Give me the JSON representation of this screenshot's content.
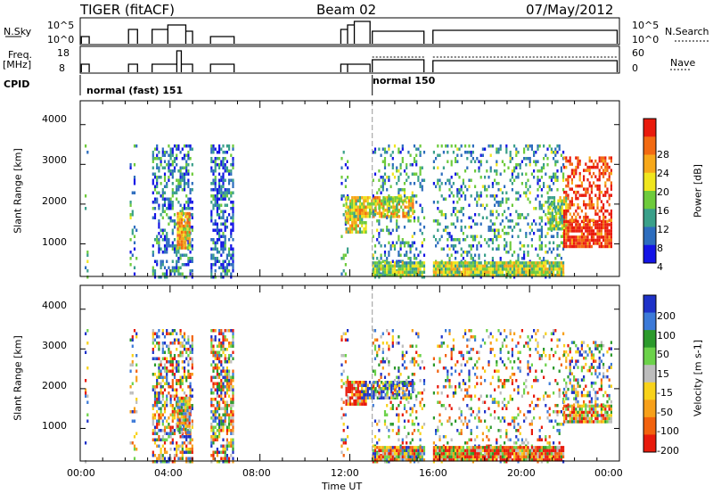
{
  "header": {
    "radar": "TIGER (fitACF)",
    "beam": "Beam 02",
    "date": "07/May/2012"
  },
  "summary_panels": {
    "nsky_label": "N.Sky",
    "nsky_ticks": [
      "10^5",
      "10^0"
    ],
    "nsearch_label": "N.Search",
    "nsearch_ticks": [
      "10^5",
      "10^0"
    ],
    "freq_label": "Freq.",
    "freq_unit": "[MHz]",
    "freq_ticks": [
      "18",
      "8"
    ],
    "nave_label": "Nave",
    "nave_ticks": [
      "60",
      "0"
    ],
    "cpid_label": "CPID",
    "cpid_modes": [
      {
        "name": "normal (fast) 151",
        "start_h": 0.0
      },
      {
        "name": "normal 150",
        "start_h": 13.0
      }
    ]
  },
  "axes": {
    "xlabel": "Time UT",
    "x_ticks": [
      "00:00",
      "04:00",
      "08:00",
      "12:00",
      "16:00",
      "20:00",
      "00:00"
    ],
    "ylabel": "Slant Range [km]",
    "y_ticks": [
      "1000",
      "2000",
      "3000",
      "4000"
    ]
  },
  "chart_data": [
    {
      "type": "heatmap",
      "title": "",
      "quantity": "Power",
      "colorbar_label": "Power [dB]",
      "colorbar_ticks": [
        "4",
        "8",
        "12",
        "16",
        "20",
        "24",
        "28"
      ],
      "colorbar_colors": [
        "#1414e6",
        "#2d6dbe",
        "#3aa08a",
        "#6ecb3c",
        "#f0e61e",
        "#f7a81a",
        "#f26a12",
        "#e91a0c"
      ],
      "xlabel": "Time UT",
      "ylabel": "Slant Range [km]",
      "xlim": [
        0,
        24
      ],
      "ylim": [
        180,
        4600
      ],
      "scatter_regions": [
        {
          "t0": 0.2,
          "t1": 0.35,
          "r0": 200,
          "r1": 3500,
          "density": 0.15,
          "level": 0.3
        },
        {
          "t0": 2.2,
          "t1": 2.5,
          "r0": 200,
          "r1": 3500,
          "density": 0.2,
          "level": 0.3
        },
        {
          "t0": 3.2,
          "t1": 5.0,
          "r0": 200,
          "r1": 3500,
          "density": 0.45,
          "level": 0.25
        },
        {
          "t0": 4.3,
          "t1": 4.9,
          "r0": 900,
          "r1": 1800,
          "density": 0.95,
          "level": 0.65
        },
        {
          "t0": 5.8,
          "t1": 6.8,
          "r0": 200,
          "r1": 3500,
          "density": 0.55,
          "level": 0.2
        },
        {
          "t0": 11.6,
          "t1": 11.9,
          "r0": 200,
          "r1": 3500,
          "density": 0.2,
          "level": 0.3
        },
        {
          "t0": 11.8,
          "t1": 12.7,
          "r0": 1300,
          "r1": 2200,
          "density": 0.8,
          "level": 0.55
        },
        {
          "t0": 12.5,
          "t1": 14.8,
          "r0": 1700,
          "r1": 2200,
          "density": 0.8,
          "level": 0.6
        },
        {
          "t0": 13.0,
          "t1": 15.3,
          "r0": 200,
          "r1": 3500,
          "density": 0.25,
          "level": 0.3
        },
        {
          "t0": 13.0,
          "t1": 15.3,
          "r0": 200,
          "r1": 560,
          "density": 0.95,
          "level": 0.45
        },
        {
          "t0": 15.7,
          "t1": 21.5,
          "r0": 200,
          "r1": 3500,
          "density": 0.25,
          "level": 0.3
        },
        {
          "t0": 15.7,
          "t1": 21.5,
          "r0": 200,
          "r1": 560,
          "density": 0.98,
          "level": 0.5
        },
        {
          "t0": 20.8,
          "t1": 21.6,
          "r0": 1400,
          "r1": 2200,
          "density": 0.8,
          "level": 0.45
        },
        {
          "t0": 21.5,
          "t1": 23.6,
          "r0": 900,
          "r1": 1600,
          "density": 0.9,
          "level": 0.95
        },
        {
          "t0": 21.5,
          "t1": 23.6,
          "r0": 1600,
          "r1": 3200,
          "density": 0.45,
          "level": 0.9
        }
      ]
    },
    {
      "type": "heatmap",
      "title": "",
      "quantity": "Velocity",
      "colorbar_label": "Velocity [m s-1]",
      "colorbar_ticks": [
        "200",
        "100",
        "50",
        "15",
        "-15",
        "-50",
        "-100",
        "-200"
      ],
      "colorbar_colors": [
        "#1e32c8",
        "#3c7ad8",
        "#2c9a2c",
        "#6cd24a",
        "#bdbdbd",
        "#f8d21a",
        "#f7a01a",
        "#f2620e",
        "#e81a0c"
      ],
      "xlabel": "Time UT",
      "ylabel": "Slant Range [km]",
      "xlim": [
        0,
        24
      ],
      "ylim": [
        180,
        4600
      ],
      "scatter_regions": [
        {
          "t0": 0.2,
          "t1": 0.35,
          "r0": 200,
          "r1": 3500,
          "density": 0.15,
          "level": 0.5
        },
        {
          "t0": 2.2,
          "t1": 2.5,
          "r0": 200,
          "r1": 3500,
          "density": 0.2,
          "level": 0.5
        },
        {
          "t0": 3.2,
          "t1": 5.0,
          "r0": 200,
          "r1": 3500,
          "density": 0.5,
          "level": 0.5
        },
        {
          "t0": 4.3,
          "t1": 4.9,
          "r0": 900,
          "r1": 1800,
          "density": 0.95,
          "level": 0.6
        },
        {
          "t0": 5.8,
          "t1": 6.8,
          "r0": 200,
          "r1": 3500,
          "density": 0.6,
          "level": 0.5
        },
        {
          "t0": 11.6,
          "t1": 11.9,
          "r0": 200,
          "r1": 3500,
          "density": 0.2,
          "level": 0.5
        },
        {
          "t0": 11.8,
          "t1": 12.7,
          "r0": 1600,
          "r1": 2200,
          "density": 0.85,
          "level": 0.9
        },
        {
          "t0": 12.5,
          "t1": 14.8,
          "r0": 1800,
          "r1": 2200,
          "density": 0.8,
          "level": 0.2
        },
        {
          "t0": 13.0,
          "t1": 15.3,
          "r0": 200,
          "r1": 3500,
          "density": 0.2,
          "level": 0.5
        },
        {
          "t0": 13.0,
          "t1": 15.3,
          "r0": 200,
          "r1": 560,
          "density": 0.95,
          "level": 0.55
        },
        {
          "t0": 15.7,
          "t1": 21.5,
          "r0": 200,
          "r1": 3500,
          "density": 0.2,
          "level": 0.5
        },
        {
          "t0": 15.7,
          "t1": 21.5,
          "r0": 200,
          "r1": 560,
          "density": 0.98,
          "level": 0.75
        },
        {
          "t0": 21.5,
          "t1": 23.6,
          "r0": 1200,
          "r1": 1600,
          "density": 0.9,
          "level": 0.7
        },
        {
          "t0": 21.5,
          "t1": 23.6,
          "r0": 1600,
          "r1": 3200,
          "density": 0.35,
          "level": 0.5
        }
      ]
    }
  ]
}
